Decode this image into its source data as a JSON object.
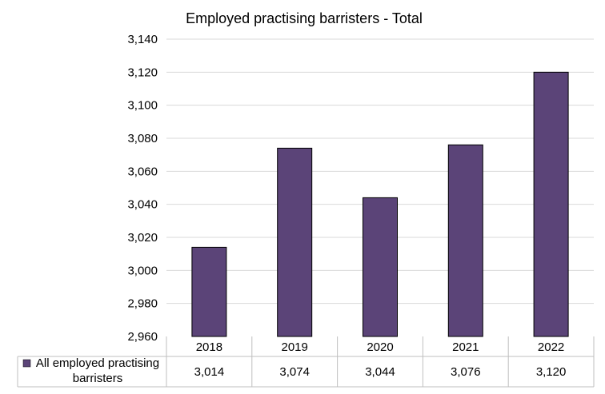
{
  "chart_data": {
    "type": "bar",
    "title": "Employed practising barristers - Total",
    "categories": [
      "2018",
      "2019",
      "2020",
      "2021",
      "2022"
    ],
    "series": [
      {
        "name": "All employed practising barristers",
        "values": [
          3014,
          3074,
          3044,
          3076,
          3120
        ]
      }
    ],
    "value_labels": [
      "3,014",
      "3,074",
      "3,044",
      "3,076",
      "3,120"
    ],
    "ylim": [
      2960,
      3140
    ],
    "yticks": [
      2960,
      2980,
      3000,
      3020,
      3040,
      3060,
      3080,
      3100,
      3120,
      3140
    ],
    "ytick_labels": [
      "2,960",
      "2,980",
      "3,000",
      "3,020",
      "3,040",
      "3,060",
      "3,080",
      "3,100",
      "3,120",
      "3,140"
    ],
    "grid": true,
    "legend": "data-table",
    "colors": {
      "bar": "#5b4478",
      "bar_outline": "#000000",
      "grid": "#d9d9d9",
      "table_border": "#bfbfbf"
    }
  }
}
